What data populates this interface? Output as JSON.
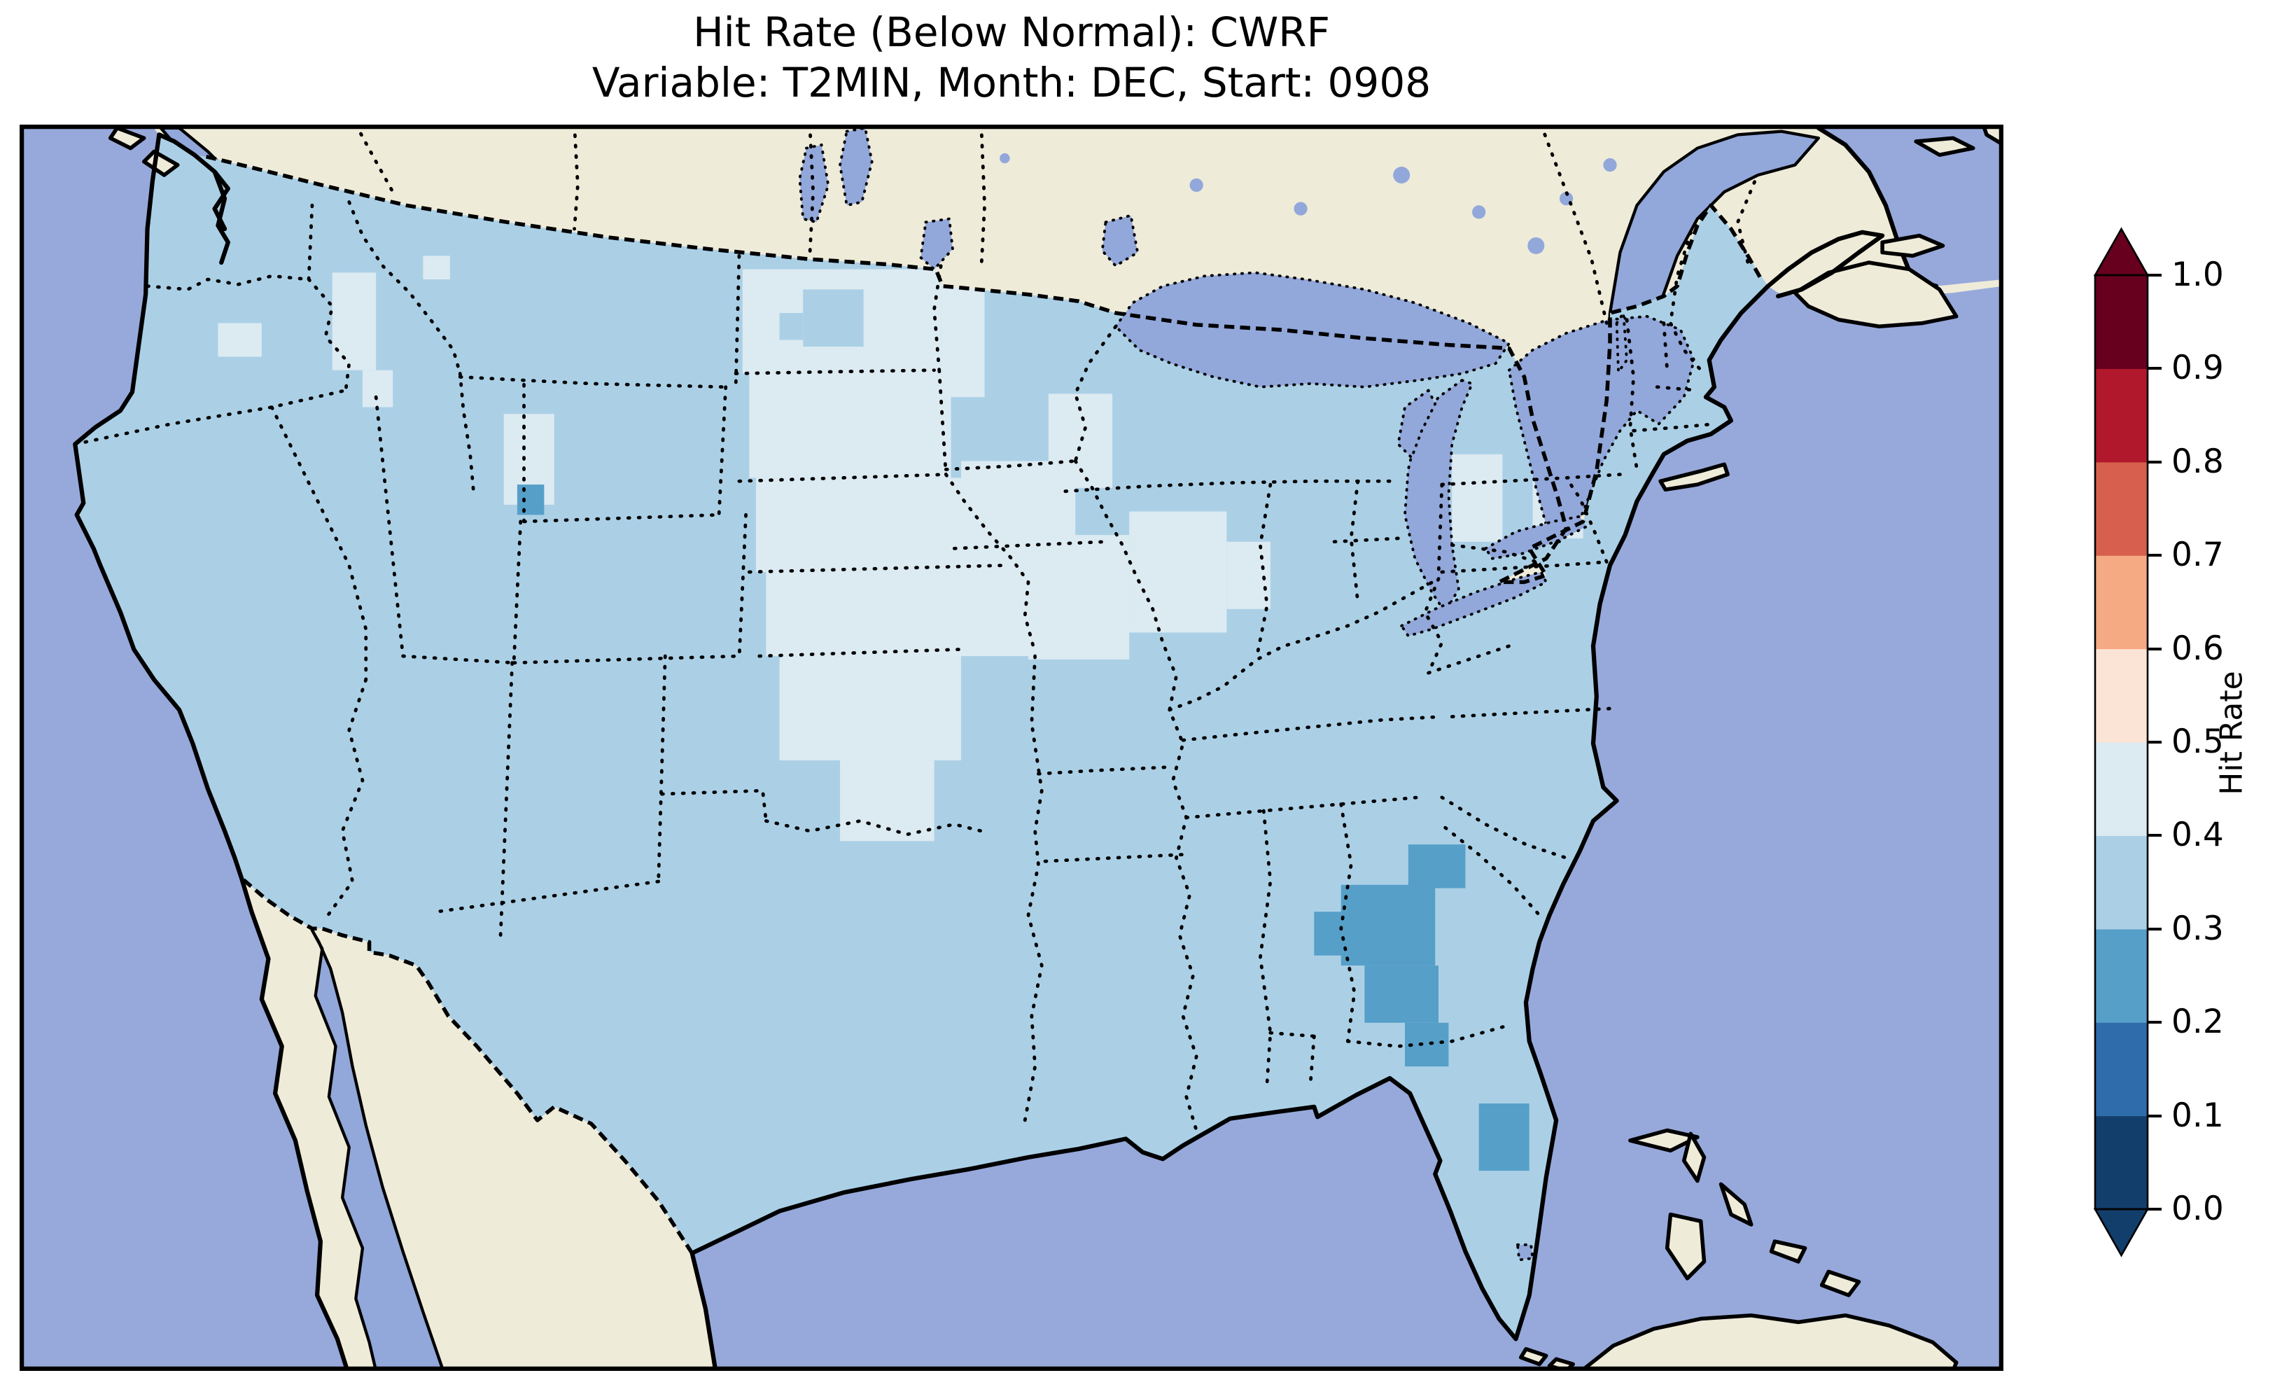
{
  "figure": {
    "title_line1": "Hit Rate (Below Normal): CWRF",
    "title_line2": "Variable: T2MIN, Month: DEC, Start: 0908",
    "background": "#ffffff"
  },
  "map": {
    "theme": {
      "ocean": "#97a9db",
      "land": "#eeebd9",
      "lake": "#92a7da",
      "coastline": "#000000"
    },
    "features": {
      "country_borders": "dashed black (US–Canada, US–Mexico)",
      "state_borders": "dotted black (US states and Canadian provinces)",
      "lakes": "Great Lakes, Lake Winnipeg, Lake Manitoba, Lake of the Woods, Lake Nipigon, Lake Champlain, Lake Okeechobee",
      "islands": "Vancouver Island area, Long Island, Nova Scotia, PEI, Anticosti, Bahamas, Cuba"
    }
  },
  "colorbar": {
    "label": "Hit Rate",
    "ticks": [
      "1.0",
      "0.9",
      "0.8",
      "0.7",
      "0.6",
      "0.5",
      "0.4",
      "0.3",
      "0.2",
      "0.1",
      "0.0"
    ],
    "bins": [
      {
        "range": "0.0-0.1",
        "color": "#123e6c"
      },
      {
        "range": "0.1-0.2",
        "color": "#2e6cab"
      },
      {
        "range": "0.2-0.3",
        "color": "#569fc9"
      },
      {
        "range": "0.3-0.4",
        "color": "#abd0e6"
      },
      {
        "range": "0.4-0.5",
        "color": "#dceaf2"
      },
      {
        "range": "0.5-0.6",
        "color": "#fbe4d5"
      },
      {
        "range": "0.6-0.7",
        "color": "#f5aa84"
      },
      {
        "range": "0.7-0.8",
        "color": "#d6604d"
      },
      {
        "range": "0.8-0.9",
        "color": "#b2182b"
      },
      {
        "range": "0.9-1.0",
        "color": "#67001f"
      }
    ],
    "extend_over_color": "#67001f",
    "extend_under_color": "#123e6c",
    "extend": "both"
  },
  "chart_data": {
    "type": "heatmap",
    "title": "Hit Rate (Below Normal): CWRF",
    "subtitle": "Variable: T2MIN, Month: DEC, Start: 0908",
    "colorbar_label": "Hit Rate",
    "value_range": [
      0.0,
      1.0
    ],
    "bin_width": 0.1,
    "colormap": "RdBu reversed, 10 discrete bins, extended arrows both ends",
    "region_values": [
      {
        "region": "Most of CONUS (West, Pacific states, Rockies, Texas, Gulf states, Southeast, Appalachians, Northeast, New England)",
        "hit_rate_bin": "0.3-0.4"
      },
      {
        "region": "Central corridor: Dakotas, Nebraska, Kansas, Oklahoma, Texas panhandle tongue, Iowa, Missouri, Illinois, SW Minnesota, SW Wisconsin, W Indiana, central Lower Michigan, patches of upstate New York, Idaho panhandle, NE Oregon, W Wyoming, isolated Montana/Washington cells",
        "hit_rate_bin": "0.4-0.5"
      },
      {
        "region": "Cluster over central Georgia, coastal South Carolina and north Florida; east-central Florida coast; single cell near Utah-Wyoming border",
        "hit_rate_bin": "0.2-0.3"
      },
      {
        "region": "Small cross-shaped cell cluster in central Dakotas (within the pale corridor)",
        "hit_rate_bin": "0.3-0.4"
      }
    ],
    "notes": "Gridded ~0.9deg cells over CONUS only; Canada, Mexico and oceans masked"
  }
}
